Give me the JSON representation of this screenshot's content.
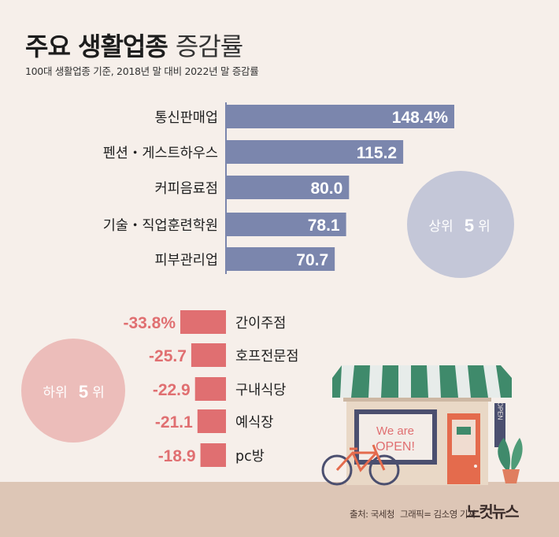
{
  "title_bold": "주요 생활업종",
  "title_light": "증감률",
  "subtitle": "100대 생활업종 기준, 2018년 말 대비 2022년 말 증감률",
  "top_badge": {
    "text": "상위",
    "num": "5",
    "unit": "위"
  },
  "bottom_badge": {
    "text": "하위",
    "num": "5",
    "unit": "위"
  },
  "store_sign": {
    "line1": "We are",
    "line2": "OPEN!",
    "vertical": "OPEN"
  },
  "footer": {
    "source": "출처: 국세청",
    "graphic": "그래픽= 김소영 기자",
    "logo": "노컷뉴스"
  },
  "colors": {
    "positive": "#7b86ad",
    "negative": "#e06f71",
    "top_circle": "#c4c7d8",
    "bottom_circle": "#ecbdba",
    "ground": "#ddc6b6",
    "background": "#f6efea"
  },
  "chart_data": {
    "type": "bar",
    "orientation": "horizontal",
    "unit": "%",
    "categories": [
      "통신판매업",
      "펜션・게스트하우스",
      "커피음료점",
      "기술・직업훈련학원",
      "피부관리업",
      "간이주점",
      "호프전문점",
      "구내식당",
      "예식장",
      "pc방"
    ],
    "values": [
      148.4,
      115.2,
      80.0,
      78.1,
      70.7,
      -33.8,
      -25.7,
      -22.9,
      -21.1,
      -18.9
    ],
    "labels": [
      "148.4%",
      "115.2",
      "80.0",
      "78.1",
      "70.7",
      "-33.8%",
      "-25.7",
      "-22.9",
      "-21.1",
      "-18.9"
    ]
  }
}
